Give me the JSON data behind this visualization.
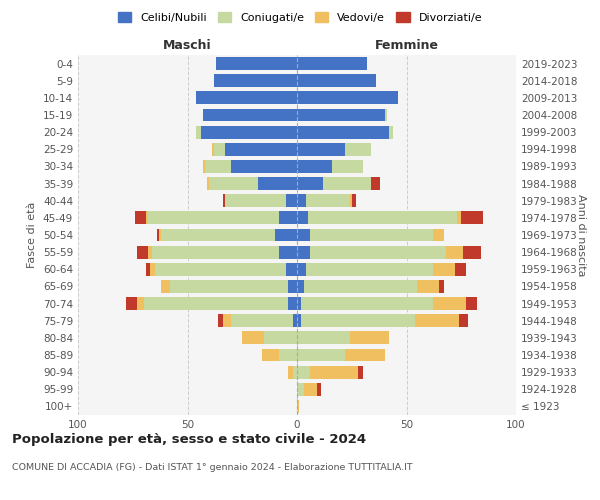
{
  "age_groups": [
    "100+",
    "95-99",
    "90-94",
    "85-89",
    "80-84",
    "75-79",
    "70-74",
    "65-69",
    "60-64",
    "55-59",
    "50-54",
    "45-49",
    "40-44",
    "35-39",
    "30-34",
    "25-29",
    "20-24",
    "15-19",
    "10-14",
    "5-9",
    "0-4"
  ],
  "birth_years": [
    "≤ 1923",
    "1924-1928",
    "1929-1933",
    "1934-1938",
    "1939-1943",
    "1944-1948",
    "1949-1953",
    "1954-1958",
    "1959-1963",
    "1964-1968",
    "1969-1973",
    "1974-1978",
    "1979-1983",
    "1984-1988",
    "1989-1993",
    "1994-1998",
    "1999-2003",
    "2004-2008",
    "2009-2013",
    "2014-2018",
    "2019-2023"
  ],
  "colors": {
    "celibe": "#4472C4",
    "coniugato": "#c5d9a0",
    "vedovo": "#f0c060",
    "divorziato": "#c0392b"
  },
  "maschi": {
    "celibe": [
      0,
      0,
      0,
      0,
      0,
      2,
      4,
      4,
      5,
      8,
      10,
      8,
      5,
      18,
      30,
      33,
      44,
      43,
      46,
      38,
      37
    ],
    "coniugato": [
      0,
      0,
      2,
      8,
      15,
      28,
      66,
      54,
      60,
      58,
      52,
      60,
      28,
      22,
      12,
      5,
      2,
      0,
      0,
      0,
      0
    ],
    "vedovo": [
      0,
      0,
      2,
      8,
      10,
      4,
      3,
      4,
      2,
      2,
      1,
      1,
      0,
      1,
      1,
      1,
      0,
      0,
      0,
      0,
      0
    ],
    "divorziato": [
      0,
      0,
      0,
      0,
      0,
      2,
      5,
      0,
      2,
      5,
      1,
      5,
      1,
      0,
      0,
      0,
      0,
      0,
      0,
      0,
      0
    ]
  },
  "femmine": {
    "nubile": [
      0,
      0,
      0,
      0,
      0,
      2,
      2,
      3,
      4,
      6,
      6,
      5,
      4,
      12,
      16,
      22,
      42,
      40,
      46,
      36,
      32
    ],
    "coniugata": [
      0,
      3,
      6,
      22,
      24,
      52,
      60,
      52,
      58,
      62,
      56,
      68,
      20,
      22,
      14,
      12,
      2,
      1,
      0,
      0,
      0
    ],
    "vedova": [
      1,
      6,
      22,
      18,
      18,
      20,
      15,
      10,
      10,
      8,
      5,
      2,
      1,
      0,
      0,
      0,
      0,
      0,
      0,
      0,
      0
    ],
    "divorziata": [
      0,
      2,
      2,
      0,
      0,
      4,
      5,
      2,
      5,
      8,
      0,
      10,
      2,
      4,
      0,
      0,
      0,
      0,
      0,
      0,
      0
    ]
  },
  "title": "Popolazione per età, sesso e stato civile - 2024",
  "subtitle": "COMUNE DI ACCADIA (FG) - Dati ISTAT 1° gennaio 2024 - Elaborazione TUTTITALIA.IT",
  "xlabel_left": "Maschi",
  "xlabel_right": "Femmine",
  "ylabel_left": "Fasce di età",
  "ylabel_right": "Anni di nascita",
  "xlim": 100,
  "bg_color": "#f5f5f5",
  "grid_color": "#cccccc"
}
